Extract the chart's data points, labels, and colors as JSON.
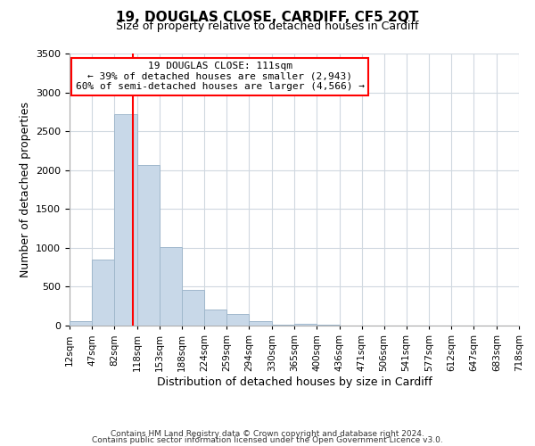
{
  "title": "19, DOUGLAS CLOSE, CARDIFF, CF5 2QT",
  "subtitle": "Size of property relative to detached houses in Cardiff",
  "xlabel": "Distribution of detached houses by size in Cardiff",
  "ylabel": "Number of detached properties",
  "footnote1": "Contains HM Land Registry data © Crown copyright and database right 2024.",
  "footnote2": "Contains public sector information licensed under the Open Government Licence v3.0.",
  "bar_edges": [
    12,
    47,
    82,
    118,
    153,
    188,
    224,
    259,
    294,
    330,
    365,
    400,
    436,
    471,
    506,
    541,
    577,
    612,
    647,
    683,
    718
  ],
  "bar_heights": [
    55,
    850,
    2720,
    2060,
    1010,
    460,
    205,
    145,
    55,
    10,
    25,
    15,
    0,
    0,
    0,
    0,
    0,
    0,
    0,
    0
  ],
  "bar_color": "#c8d8e8",
  "bar_edgecolor": "#a0b8cc",
  "grid_color": "#d0d8e0",
  "property_line_x": 111,
  "property_line_color": "red",
  "annotation_title": "19 DOUGLAS CLOSE: 111sqm",
  "annotation_line1": "← 39% of detached houses are smaller (2,943)",
  "annotation_line2": "60% of semi-detached houses are larger (4,566) →",
  "annotation_box_color": "#ffffff",
  "annotation_box_edgecolor": "red",
  "ylim": [
    0,
    3500
  ],
  "yticks": [
    0,
    500,
    1000,
    1500,
    2000,
    2500,
    3000,
    3500
  ],
  "tick_labels": [
    "12sqm",
    "47sqm",
    "82sqm",
    "118sqm",
    "153sqm",
    "188sqm",
    "224sqm",
    "259sqm",
    "294sqm",
    "330sqm",
    "365sqm",
    "400sqm",
    "436sqm",
    "471sqm",
    "506sqm",
    "541sqm",
    "577sqm",
    "612sqm",
    "647sqm",
    "683sqm",
    "718sqm"
  ]
}
